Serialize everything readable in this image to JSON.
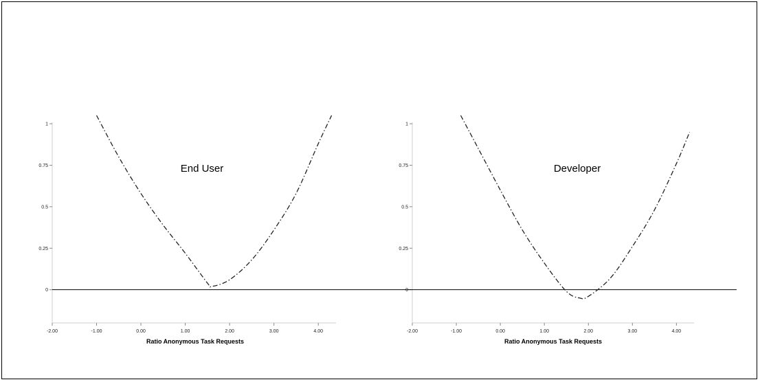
{
  "chart_data": [
    {
      "type": "line",
      "title": "End User",
      "xlabel": "Ratio Anonymous Task Requests",
      "ylabel": "",
      "xlim": [
        -2.0,
        4.4
      ],
      "ylim": [
        -0.2,
        1.05
      ],
      "x_ticks": [
        "-2.00",
        "-1.00",
        "0.00",
        "1.00",
        "2.00",
        "3.00",
        "4.00"
      ],
      "y_ticks": [
        "0",
        "0.25",
        "0.5",
        "0.75",
        "1"
      ],
      "reference_line_y": 0,
      "line_style": "dash-dot",
      "series": [
        {
          "x": [
            -1.0,
            -0.5,
            0.0,
            0.5,
            1.0,
            1.5,
            1.6,
            2.0,
            2.5,
            3.0,
            3.5,
            4.0,
            4.3
          ],
          "values": [
            1.05,
            0.8,
            0.58,
            0.39,
            0.22,
            0.04,
            0.02,
            0.06,
            0.18,
            0.36,
            0.58,
            0.88,
            1.05
          ]
        }
      ]
    },
    {
      "type": "line",
      "title": "Developer",
      "xlabel": "Ratio Anonymous Task Requests",
      "ylabel": "",
      "xlim": [
        -2.0,
        4.4
      ],
      "ylim": [
        -0.2,
        1.05
      ],
      "x_ticks": [
        "-2.00",
        "-1.00",
        "0.00",
        "1.00",
        "2.00",
        "3.00",
        "4.00"
      ],
      "y_ticks": [
        "0",
        "0.25",
        "0.5",
        "0.75",
        "1"
      ],
      "reference_line_y": 0,
      "line_style": "dash-dot",
      "series": [
        {
          "x": [
            -0.9,
            -0.5,
            0.0,
            0.5,
            1.0,
            1.5,
            1.8,
            2.0,
            2.5,
            3.0,
            3.5,
            4.0,
            4.3
          ],
          "values": [
            1.05,
            0.85,
            0.6,
            0.36,
            0.16,
            -0.01,
            -0.05,
            -0.04,
            0.07,
            0.26,
            0.48,
            0.76,
            0.95
          ]
        }
      ]
    }
  ]
}
